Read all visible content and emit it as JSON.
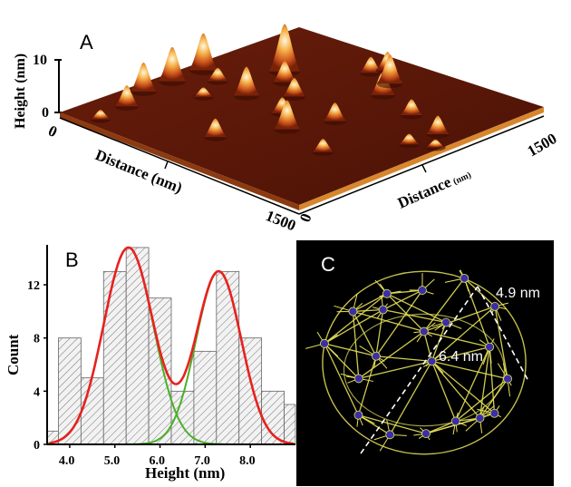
{
  "panels": {
    "a": {
      "letter": "A",
      "z_label": "Height (nm)",
      "z_ticks": [
        "10",
        "0"
      ],
      "x_label": "Distance (nm)",
      "x_ticks": [
        "0",
        "1500"
      ],
      "y_label": "Distance",
      "y_label_unit": "(nm)",
      "y_ticks": [
        "0",
        "1500"
      ],
      "colors": {
        "surface": "#5a1608",
        "peak_core": "#fff1c8",
        "peak_mid": "#e07b1a"
      },
      "peaks": [
        {
          "u": 0.05,
          "v": 0.12,
          "h": 0.18
        },
        {
          "u": 0.18,
          "v": 0.1,
          "h": 0.4
        },
        {
          "u": 0.4,
          "v": 0.2,
          "h": 0.18
        },
        {
          "u": 0.3,
          "v": 0.05,
          "h": 0.55
        },
        {
          "u": 0.42,
          "v": 0.05,
          "h": 0.65
        },
        {
          "u": 0.55,
          "v": 0.05,
          "h": 0.7
        },
        {
          "u": 0.52,
          "v": 0.14,
          "h": 0.25
        },
        {
          "u": 0.5,
          "v": 0.28,
          "h": 0.55
        },
        {
          "u": 0.6,
          "v": 0.38,
          "h": 0.35
        },
        {
          "u": 0.66,
          "v": 0.28,
          "h": 0.4
        },
        {
          "u": 0.72,
          "v": 0.22,
          "h": 0.9
        },
        {
          "u": 0.48,
          "v": 0.45,
          "h": 0.3
        },
        {
          "u": 0.4,
          "v": 0.55,
          "h": 0.55
        },
        {
          "u": 0.55,
          "v": 0.6,
          "h": 0.35
        },
        {
          "u": 0.8,
          "v": 0.55,
          "h": 0.45
        },
        {
          "u": 0.88,
          "v": 0.5,
          "h": 0.55
        },
        {
          "u": 0.9,
          "v": 0.4,
          "h": 0.3
        },
        {
          "u": 0.95,
          "v": 0.42,
          "h": 0.35
        },
        {
          "u": 0.75,
          "v": 0.72,
          "h": 0.3
        },
        {
          "u": 0.7,
          "v": 0.88,
          "h": 0.35
        },
        {
          "u": 0.58,
          "v": 0.88,
          "h": 0.2
        },
        {
          "u": 0.62,
          "v": 0.95,
          "h": 0.15
        },
        {
          "u": 0.35,
          "v": 0.75,
          "h": 0.25
        },
        {
          "u": 0.2,
          "v": 0.45,
          "h": 0.35
        }
      ]
    },
    "b": {
      "letter": "B",
      "xlabel": "Height (nm)",
      "ylabel": "Count",
      "xlim": [
        3.5,
        9.0
      ],
      "ylim": [
        0,
        15
      ],
      "x_ticks": [
        {
          "v": 4.0,
          "t": "4.0"
        },
        {
          "v": 5.0,
          "t": "5.0"
        },
        {
          "v": 6.0,
          "t": "6.0"
        },
        {
          "v": 7.0,
          "t": "7.0"
        },
        {
          "v": 8.0,
          "t": "8.0"
        }
      ],
      "y_ticks": [
        {
          "v": 0,
          "t": "0"
        },
        {
          "v": 4,
          "t": "4"
        },
        {
          "v": 8,
          "t": "8"
        },
        {
          "v": 12,
          "t": "12"
        }
      ],
      "colors": {
        "total_fit": "#e8211e",
        "component_fit": "#4caf2a",
        "bar_fill": "#f2f2f2",
        "hatch": "#777777"
      }
    },
    "c": {
      "letter": "C",
      "label_outer": "4.9 nm",
      "label_inner": "6.4 nm",
      "colors": {
        "background": "#000000",
        "bonds": "#e6e15a",
        "metal": "#3a2fa8",
        "guide": "#ffffff"
      }
    }
  },
  "chart_data": {
    "type": "bar",
    "xlabel": "Height (nm)",
    "ylabel": "Count",
    "xlim": [
      3.5,
      9.0
    ],
    "ylim": [
      0,
      15
    ],
    "bins": [
      {
        "x0": 3.5,
        "x1": 3.75,
        "count": 1
      },
      {
        "x0": 3.75,
        "x1": 4.25,
        "count": 8
      },
      {
        "x0": 4.25,
        "x1": 4.75,
        "count": 5
      },
      {
        "x0": 4.75,
        "x1": 5.25,
        "count": 13
      },
      {
        "x0": 5.25,
        "x1": 5.75,
        "count": 14.8
      },
      {
        "x0": 5.75,
        "x1": 6.25,
        "count": 11
      },
      {
        "x0": 6.25,
        "x1": 6.75,
        "count": 4
      },
      {
        "x0": 6.75,
        "x1": 7.25,
        "count": 7
      },
      {
        "x0": 7.25,
        "x1": 7.75,
        "count": 13
      },
      {
        "x0": 7.75,
        "x1": 8.25,
        "count": 8
      },
      {
        "x0": 8.25,
        "x1": 8.75,
        "count": 4
      },
      {
        "x0": 8.75,
        "x1": 9.0,
        "count": 3
      }
    ],
    "fits": [
      {
        "kind": "component",
        "center": 5.3,
        "sigma": 0.55,
        "amplitude": 14.8
      },
      {
        "kind": "component",
        "center": 7.3,
        "sigma": 0.5,
        "amplitude": 13.0
      }
    ]
  }
}
